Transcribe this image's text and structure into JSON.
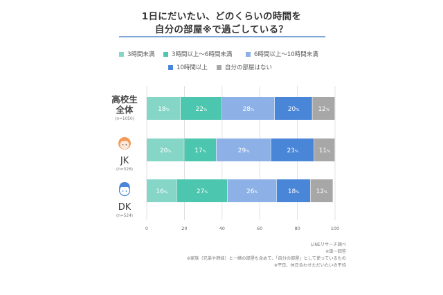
{
  "title": {
    "line1": "1日にだいたい、どのくらいの時間を",
    "line2": "自分の部屋※で過ごしている？"
  },
  "colors": {
    "lt3": "#86d6c8",
    "h3to6": "#4cc6ae",
    "h6to10": "#8db1e6",
    "ge10": "#4a86d8",
    "none": "#a7a7a7"
  },
  "legend": [
    {
      "label": "3時間未満",
      "color": "#86d6c8"
    },
    {
      "label": "3時間以上〜6時間未満",
      "color": "#4cc6ae"
    },
    {
      "label": "6時間以上〜10時間未満",
      "color": "#8db1e6"
    },
    {
      "label": "10時間以上",
      "color": "#4a86d8"
    },
    {
      "label": "自分の部屋はない",
      "color": "#a7a7a7"
    }
  ],
  "groups": [
    {
      "label_lines": [
        "高校生",
        "全体"
      ],
      "n": "(n=1050)",
      "icon": ""
    },
    {
      "label_lines": [
        "JK"
      ],
      "n": "(n=526)",
      "icon": "girl-face-icon"
    },
    {
      "label_lines": [
        "DK"
      ],
      "n": "(n=524)",
      "icon": "boy-face-icon"
    }
  ],
  "chart_data": {
    "type": "bar",
    "orientation": "horizontal",
    "stacked": true,
    "categories": [
      "高校生全体",
      "JK",
      "DK"
    ],
    "series": [
      {
        "name": "3時間未満",
        "values": [
          18,
          20,
          16
        ]
      },
      {
        "name": "3時間以上〜6時間未満",
        "values": [
          22,
          17,
          27
        ]
      },
      {
        "name": "6時間以上〜10時間未満",
        "values": [
          28,
          29,
          26
        ]
      },
      {
        "name": "10時間以上",
        "values": [
          20,
          23,
          18
        ]
      },
      {
        "name": "自分の部屋はない",
        "values": [
          12,
          11,
          12
        ]
      }
    ],
    "data_labels": [
      [
        "18%",
        "22%",
        "28%",
        "20%",
        "12%"
      ],
      [
        "20%",
        "17%",
        "29%",
        "23%",
        "11%"
      ],
      [
        "16%",
        "27%",
        "26%",
        "18%",
        "12%"
      ]
    ],
    "xlim": [
      0,
      100
    ],
    "xticks": [
      "0",
      "20",
      "40",
      "60",
      "80",
      "100"
    ],
    "grid": true,
    "legend_position": "top"
  },
  "notes": [
    "LINEリサーチ調べ",
    "※単一回答",
    "※家族（兄弟や姉妹）と一緒の部屋も含めて、「自分の部屋」として使っているもの",
    "※平日、休日合わせただいたいの平均"
  ]
}
